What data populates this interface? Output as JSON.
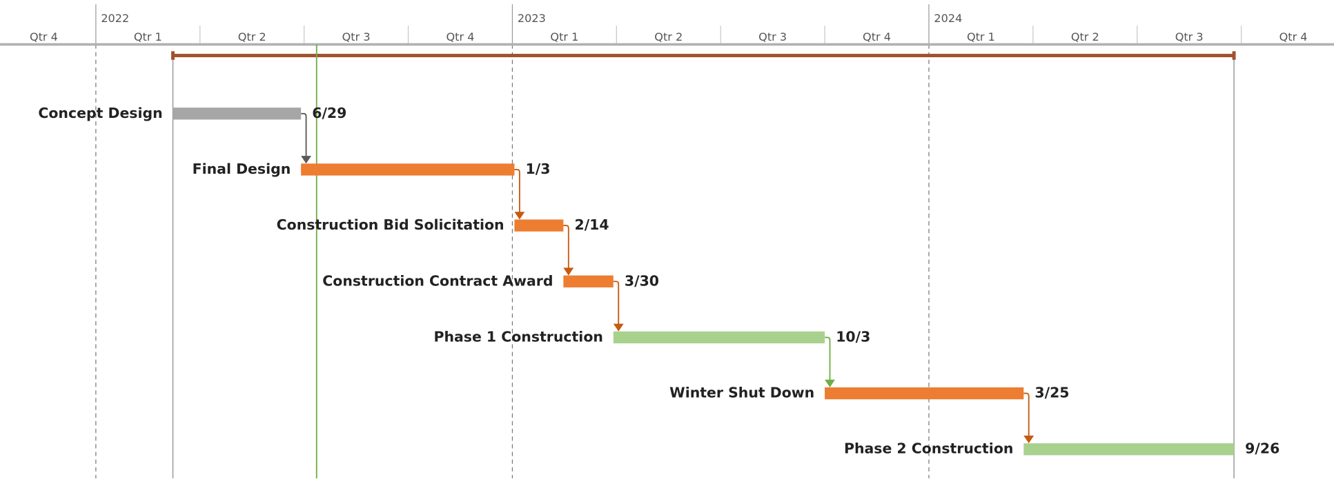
{
  "chart_data": {
    "type": "gantt",
    "xlim": [
      -0.92,
      11.89
    ],
    "quarters": [
      {
        "value": -1,
        "label": "Qtr 4"
      },
      {
        "value": 0,
        "label": "Qtr 1"
      },
      {
        "value": 1,
        "label": "Qtr 2"
      },
      {
        "value": 2,
        "label": "Qtr 3"
      },
      {
        "value": 3,
        "label": "Qtr 4"
      },
      {
        "value": 4,
        "label": "Qtr 1"
      },
      {
        "value": 5,
        "label": "Qtr 2"
      },
      {
        "value": 6,
        "label": "Qtr 3"
      },
      {
        "value": 7,
        "label": "Qtr 4"
      },
      {
        "value": 8,
        "label": "Qtr 1"
      },
      {
        "value": 9,
        "label": "Qtr 2"
      },
      {
        "value": 10,
        "label": "Qtr 3"
      },
      {
        "value": 11,
        "label": "Qtr 4"
      }
    ],
    "years": [
      {
        "value": 0,
        "label": "2022"
      },
      {
        "value": 4,
        "label": "2023"
      },
      {
        "value": 8,
        "label": "2024"
      }
    ],
    "today": 2.12,
    "summary_color": "#a0522d",
    "tasks": [
      {
        "name": "Concept Design",
        "start": 0.74,
        "end": 1.97,
        "end_label": "6/29",
        "color": "#a6a6a6",
        "link_color": "#595959"
      },
      {
        "name": "Final Design",
        "start": 1.97,
        "end": 4.02,
        "end_label": "1/3",
        "color": "#ed7d31",
        "link_color": "#c55a11"
      },
      {
        "name": "Construction Bid Solicitation",
        "start": 4.02,
        "end": 4.49,
        "end_label": "2/14",
        "color": "#ed7d31",
        "link_color": "#c55a11"
      },
      {
        "name": "Construction Contract Award",
        "start": 4.49,
        "end": 4.97,
        "end_label": "3/30",
        "color": "#ed7d31",
        "link_color": "#c55a11"
      },
      {
        "name": "Phase 1 Construction",
        "start": 4.97,
        "end": 7.0,
        "end_label": "10/3",
        "color": "#a9d18e",
        "link_color": "#70ad47"
      },
      {
        "name": "Winter Shut Down",
        "start": 7.0,
        "end": 8.91,
        "end_label": "3/25",
        "color": "#ed7d31",
        "link_color": "#c55a11"
      },
      {
        "name": "Phase 2 Construction",
        "start": 8.91,
        "end": 10.93,
        "end_label": "9/26",
        "color": "#a9d18e",
        "link_color": "#70ad47"
      }
    ]
  }
}
